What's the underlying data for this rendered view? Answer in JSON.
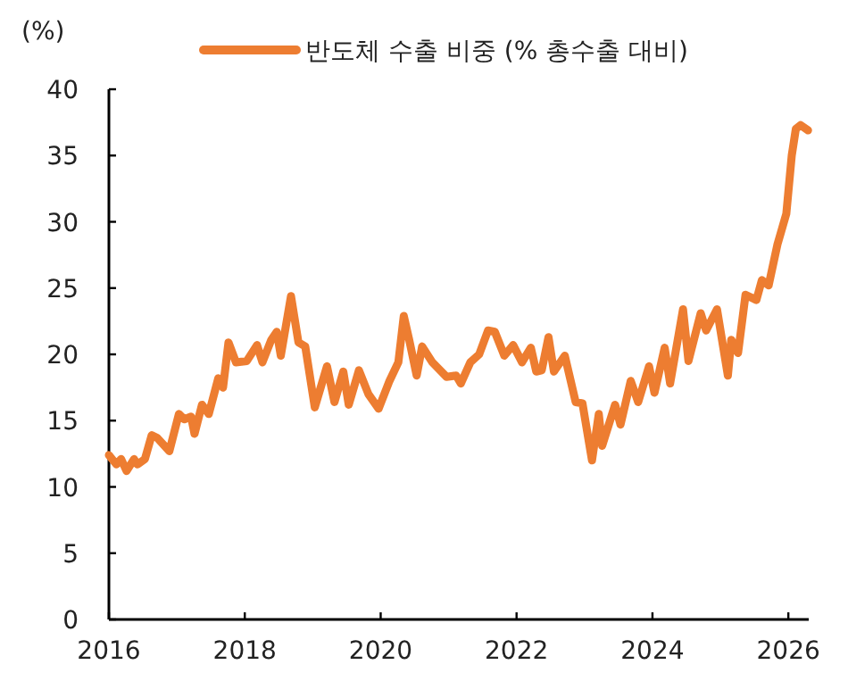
{
  "chart_data": {
    "type": "line",
    "ylabel": "(%)",
    "legend": "top",
    "grid": false,
    "marker": "none",
    "line_style": "solid",
    "xlim": [
      2016,
      2026.3
    ],
    "xticks": [
      2016,
      2018,
      2020,
      2022,
      2024,
      2026
    ],
    "ylim": [
      0,
      40
    ],
    "yticks": [
      0,
      5,
      10,
      15,
      20,
      25,
      30,
      35,
      40
    ],
    "series": [
      {
        "name": "반도체 수출 비중 (% 총수출 대비)",
        "color": "#ed7d31",
        "x": [
          2016.0,
          2016.11,
          2016.18,
          2016.26,
          2016.37,
          2016.42,
          2016.53,
          2016.63,
          2016.71,
          2016.89,
          2017.03,
          2017.11,
          2017.21,
          2017.26,
          2017.37,
          2017.47,
          2017.61,
          2017.68,
          2017.76,
          2017.87,
          2018.03,
          2018.18,
          2018.26,
          2018.39,
          2018.47,
          2018.53,
          2018.68,
          2018.79,
          2018.89,
          2019.03,
          2019.21,
          2019.32,
          2019.45,
          2019.53,
          2019.68,
          2019.82,
          2019.97,
          2020.13,
          2020.26,
          2020.34,
          2020.42,
          2020.53,
          2020.61,
          2020.76,
          2020.97,
          2021.11,
          2021.18,
          2021.32,
          2021.45,
          2021.58,
          2021.68,
          2021.82,
          2021.95,
          2022.08,
          2022.21,
          2022.29,
          2022.37,
          2022.47,
          2022.55,
          2022.71,
          2022.87,
          2022.97,
          2023.11,
          2023.21,
          2023.26,
          2023.45,
          2023.53,
          2023.68,
          2023.79,
          2023.95,
          2024.03,
          2024.18,
          2024.26,
          2024.45,
          2024.53,
          2024.71,
          2024.79,
          2024.95,
          2025.11,
          2025.16,
          2025.26,
          2025.37,
          2025.53,
          2025.61,
          2025.71,
          2025.84,
          2025.97,
          2026.05,
          2026.11,
          2026.18,
          2026.29
        ],
        "values": [
          12.4,
          11.7,
          12.1,
          11.2,
          12.1,
          11.7,
          12.1,
          13.9,
          13.7,
          12.7,
          15.5,
          15.1,
          15.3,
          14.0,
          16.2,
          15.5,
          18.2,
          17.5,
          20.9,
          19.4,
          19.5,
          20.7,
          19.4,
          21.1,
          21.7,
          19.9,
          24.4,
          20.9,
          20.6,
          16.0,
          19.1,
          16.4,
          18.7,
          16.2,
          18.8,
          17.0,
          15.9,
          18.0,
          19.4,
          22.9,
          21.1,
          18.4,
          20.6,
          19.4,
          18.3,
          18.4,
          17.8,
          19.4,
          20.0,
          21.8,
          21.7,
          19.9,
          20.7,
          19.4,
          20.5,
          18.7,
          18.8,
          21.3,
          18.7,
          19.9,
          16.4,
          16.3,
          12.0,
          15.5,
          13.1,
          16.2,
          14.7,
          18.0,
          16.4,
          19.1,
          17.1,
          20.5,
          17.8,
          23.4,
          19.5,
          23.1,
          21.8,
          23.4,
          18.4,
          21.1,
          20.1,
          24.5,
          24.1,
          25.6,
          25.2,
          28.3,
          30.6,
          35.0,
          37.0,
          37.3,
          36.9
        ]
      }
    ]
  }
}
